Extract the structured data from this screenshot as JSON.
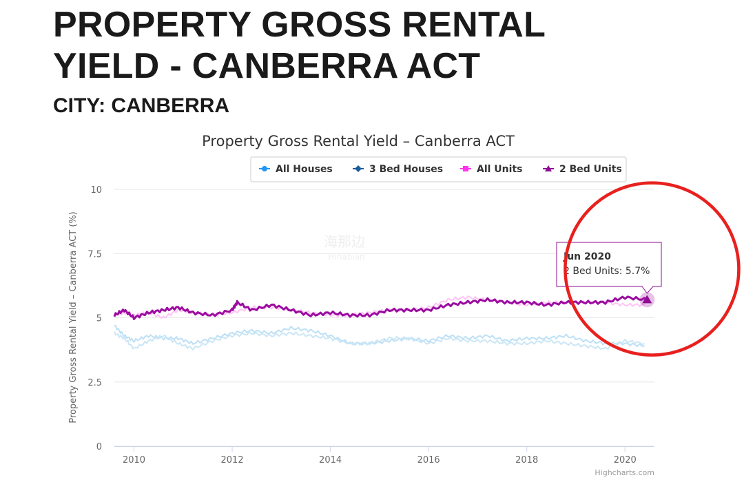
{
  "page": {
    "heading_line1": "PROPERTY GROSS RENTAL",
    "heading_line2": "YIELD - CANBERRA ACT",
    "subheading": "CITY: CANBERRA"
  },
  "chart_data": {
    "type": "line",
    "title": "Property Gross Rental Yield – Canberra ACT",
    "xlabel": "",
    "ylabel": "Property Gross Rental Yield – Canberra ACT (%)",
    "ylim": [
      0,
      10
    ],
    "xlim": [
      2009.6,
      2020.6
    ],
    "yticks": [
      {
        "value": 0,
        "label": "0"
      },
      {
        "value": 2.5,
        "label": "2.5"
      },
      {
        "value": 5,
        "label": "5"
      },
      {
        "value": 7.5,
        "label": "7.5"
      },
      {
        "value": 10,
        "label": "10"
      }
    ],
    "xticks": [
      {
        "value": 2010,
        "label": "2010"
      },
      {
        "value": 2012,
        "label": "2012"
      },
      {
        "value": 2014,
        "label": "2014"
      },
      {
        "value": 2016,
        "label": "2016"
      },
      {
        "value": 2018,
        "label": "2018"
      },
      {
        "value": 2020,
        "label": "2020"
      }
    ],
    "legend_position": "top-center",
    "series": [
      {
        "name": "All Houses",
        "color": "#bde0f5",
        "legend_color": "#2196f3",
        "marker": "circle",
        "x": [
          2009.6,
          2009.8,
          2010.0,
          2010.3,
          2010.6,
          2010.9,
          2011.2,
          2011.6,
          2012.0,
          2012.4,
          2012.8,
          2013.2,
          2013.6,
          2014.0,
          2014.4,
          2014.8,
          2015.2,
          2015.6,
          2016.0,
          2016.4,
          2016.8,
          2017.2,
          2017.6,
          2018.0,
          2018.4,
          2018.8,
          2019.2,
          2019.6,
          2020.0,
          2020.4
        ],
        "values": [
          4.7,
          4.3,
          4.1,
          4.3,
          4.2,
          4.2,
          4.0,
          4.2,
          4.4,
          4.5,
          4.4,
          4.6,
          4.5,
          4.3,
          4.0,
          4.0,
          4.1,
          4.2,
          4.1,
          4.3,
          4.2,
          4.3,
          4.1,
          4.2,
          4.2,
          4.3,
          4.1,
          4.0,
          4.0,
          3.9
        ]
      },
      {
        "name": "3 Bed Houses",
        "color": "#cbe6f6",
        "legend_color": "#1d5c9a",
        "marker": "diamond",
        "x": [
          2009.6,
          2009.8,
          2010.0,
          2010.3,
          2010.6,
          2010.9,
          2011.2,
          2011.6,
          2012.0,
          2012.4,
          2012.8,
          2013.2,
          2013.6,
          2014.0,
          2014.4,
          2014.8,
          2015.2,
          2015.6,
          2016.0,
          2016.4,
          2016.8,
          2017.2,
          2017.6,
          2018.0,
          2018.4,
          2018.8,
          2019.2,
          2019.6,
          2020.0,
          2020.4
        ],
        "values": [
          4.4,
          4.2,
          3.8,
          4.1,
          4.3,
          4.0,
          3.8,
          4.1,
          4.3,
          4.4,
          4.3,
          4.4,
          4.3,
          4.2,
          4.0,
          4.0,
          4.2,
          4.2,
          4.0,
          4.2,
          4.1,
          4.1,
          4.0,
          4.0,
          4.1,
          4.0,
          3.9,
          3.8,
          4.1,
          4.0
        ]
      },
      {
        "name": "All Units",
        "color": "#ffc4f5",
        "legend_color": "#ff33ee",
        "marker": "square",
        "x": [
          2009.6,
          2009.8,
          2010.0,
          2010.3,
          2010.6,
          2010.9,
          2011.2,
          2011.6,
          2012.0,
          2012.4,
          2012.8,
          2013.2,
          2013.6,
          2014.0,
          2014.4,
          2014.8,
          2015.2,
          2015.6,
          2016.0,
          2016.4,
          2016.8,
          2017.2,
          2017.6,
          2018.0,
          2018.4,
          2018.8,
          2019.2,
          2019.6,
          2020.0,
          2020.4
        ],
        "values": [
          5.1,
          5.2,
          5.1,
          5.2,
          5.0,
          5.3,
          5.2,
          5.1,
          5.2,
          5.4,
          5.4,
          5.3,
          5.2,
          5.1,
          5.1,
          5.2,
          5.3,
          5.3,
          5.4,
          5.7,
          5.8,
          5.7,
          5.6,
          5.5,
          5.6,
          5.6,
          5.6,
          5.6,
          5.5,
          5.5
        ]
      },
      {
        "name": "2 Bed Units",
        "color": "#9b0ca0",
        "legend_color": "#8e0d93",
        "marker": "triangle",
        "x": [
          2009.6,
          2009.8,
          2010.0,
          2010.3,
          2010.6,
          2010.9,
          2011.2,
          2011.6,
          2012.0,
          2012.1,
          2012.4,
          2012.8,
          2013.2,
          2013.6,
          2014.0,
          2014.4,
          2014.8,
          2015.2,
          2015.6,
          2016.0,
          2016.4,
          2016.8,
          2017.2,
          2017.6,
          2018.0,
          2018.4,
          2018.8,
          2019.2,
          2019.6,
          2020.0,
          2020.45
        ],
        "values": [
          5.1,
          5.3,
          5.0,
          5.2,
          5.3,
          5.4,
          5.2,
          5.1,
          5.3,
          5.6,
          5.3,
          5.5,
          5.3,
          5.1,
          5.2,
          5.1,
          5.1,
          5.3,
          5.3,
          5.3,
          5.5,
          5.6,
          5.7,
          5.6,
          5.6,
          5.5,
          5.6,
          5.6,
          5.6,
          5.8,
          5.7
        ]
      }
    ],
    "tooltip": {
      "title": "Jun 2020",
      "series": "2 Bed Units",
      "value": "5.7%",
      "x": 2020.45,
      "y": 5.7
    },
    "highlight_circle": {
      "color": "#e8201e",
      "x": 2020.55,
      "y": 6.9
    },
    "watermark": {
      "line1": "海那边",
      "line2": "Hinabian"
    },
    "credits": "Highcharts.com"
  }
}
